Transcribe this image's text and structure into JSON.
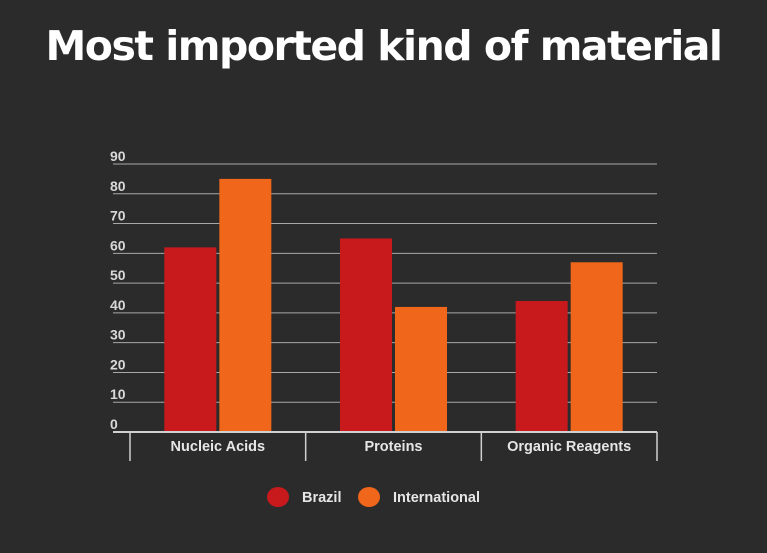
{
  "chart_data": {
    "type": "bar",
    "title": "Most imported kind of material",
    "xlabel": "",
    "ylabel": "",
    "categories": [
      "Nucleic Acids",
      "Proteins",
      "Organic Reagents"
    ],
    "series": [
      {
        "name": "Brazil",
        "values": [
          62,
          65,
          44
        ],
        "color": "#c8191c"
      },
      {
        "name": "International",
        "values": [
          85,
          42,
          57
        ],
        "color": "#f0661b"
      }
    ],
    "ylim": [
      0,
      90
    ],
    "yticks": [
      0,
      10,
      20,
      30,
      40,
      50,
      60,
      70,
      80,
      90
    ],
    "grid": true,
    "legend_position": "bottom-center"
  }
}
